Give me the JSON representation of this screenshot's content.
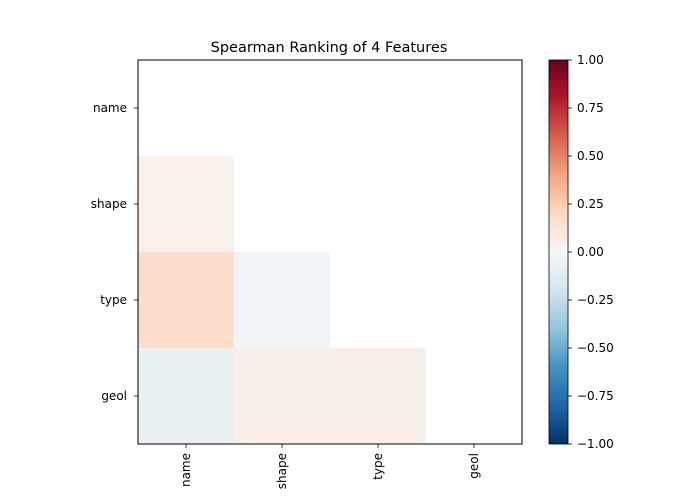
{
  "chart_data": {
    "type": "heatmap",
    "title": "Spearman Ranking of 4 Features",
    "features": [
      "name",
      "shape",
      "type",
      "geol"
    ],
    "matrix": [
      [
        null,
        null,
        null,
        null
      ],
      [
        0.05,
        null,
        null,
        null
      ],
      [
        0.18,
        -0.03,
        null,
        null
      ],
      [
        -0.08,
        0.06,
        0.06,
        null
      ]
    ],
    "colormap": "RdBu_r",
    "vmin": -1.0,
    "vmax": 1.0,
    "colorbar_ticks": [
      "1.00",
      "0.75",
      "0.50",
      "0.25",
      "0.00",
      "−0.25",
      "−0.50",
      "−0.75",
      "−1.00"
    ],
    "colorbar_tick_values": [
      1.0,
      0.75,
      0.5,
      0.25,
      0.0,
      -0.25,
      -0.5,
      -0.75,
      -1.0
    ],
    "masked_upper_triangle": true,
    "grid": false
  }
}
